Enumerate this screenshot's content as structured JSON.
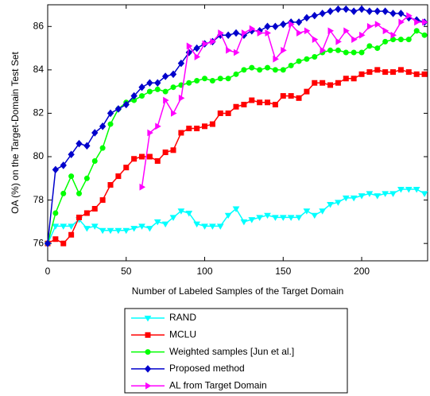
{
  "chart_data": {
    "type": "line",
    "xlabel": "Number of Labeled Samples of the Target Domain",
    "ylabel": "OA (%) on the Target-Domain Test Set",
    "x": [
      0,
      5,
      10,
      15,
      20,
      25,
      30,
      35,
      40,
      45,
      50,
      55,
      60,
      65,
      70,
      75,
      80,
      85,
      90,
      95,
      100,
      105,
      110,
      115,
      120,
      125,
      130,
      135,
      140,
      145,
      150,
      155,
      160,
      165,
      170,
      175,
      180,
      185,
      190,
      195,
      200,
      205,
      210,
      215,
      220,
      225,
      230,
      235,
      240
    ],
    "xlim": [
      0,
      242
    ],
    "xticks": [
      0,
      50,
      100,
      150,
      200
    ],
    "ylim": [
      75.2,
      87
    ],
    "yticks": [
      76,
      78,
      80,
      82,
      84,
      86
    ],
    "legend": "below",
    "series": [
      {
        "name": "RAND",
        "color": "#00ffff",
        "marker": "triangle-down",
        "values": [
          76.0,
          76.8,
          76.8,
          76.8,
          77.1,
          76.7,
          76.8,
          76.6,
          76.6,
          76.6,
          76.6,
          76.7,
          76.8,
          76.7,
          77.0,
          76.9,
          77.2,
          77.5,
          77.4,
          76.9,
          76.8,
          76.8,
          76.8,
          77.3,
          77.6,
          77.0,
          77.1,
          77.2,
          77.3,
          77.2,
          77.2,
          77.2,
          77.2,
          77.5,
          77.3,
          77.5,
          77.8,
          77.9,
          78.1,
          78.1,
          78.2,
          78.3,
          78.2,
          78.3,
          78.3,
          78.5,
          78.5,
          78.5,
          78.3
        ]
      },
      {
        "name": "MCLU",
        "color": "#ff0000",
        "marker": "square",
        "values": [
          76.0,
          76.2,
          76.0,
          76.4,
          77.2,
          77.4,
          77.6,
          78.0,
          78.7,
          79.1,
          79.5,
          79.9,
          80.0,
          80.0,
          79.8,
          80.2,
          80.3,
          81.1,
          81.3,
          81.3,
          81.4,
          81.5,
          82.0,
          82.0,
          82.3,
          82.4,
          82.6,
          82.5,
          82.5,
          82.4,
          82.8,
          82.8,
          82.7,
          83.0,
          83.4,
          83.4,
          83.3,
          83.4,
          83.6,
          83.6,
          83.8,
          83.9,
          84.0,
          83.9,
          83.9,
          84.0,
          83.9,
          83.8,
          83.8
        ]
      },
      {
        "name": "Weighted samples [Jun et al.]",
        "color": "#00ff00",
        "marker": "circle",
        "values": [
          76.0,
          77.4,
          78.3,
          79.1,
          78.3,
          79.0,
          79.8,
          80.4,
          81.5,
          82.2,
          82.5,
          82.6,
          82.8,
          83.0,
          83.1,
          83.0,
          83.2,
          83.3,
          83.4,
          83.5,
          83.6,
          83.5,
          83.6,
          83.6,
          83.8,
          84.0,
          84.1,
          84.0,
          84.1,
          84.0,
          84.0,
          84.2,
          84.4,
          84.5,
          84.6,
          84.8,
          84.9,
          84.9,
          84.8,
          84.8,
          84.8,
          85.1,
          85.0,
          85.3,
          85.4,
          85.4,
          85.4,
          85.8,
          85.6
        ]
      },
      {
        "name": "Proposed method",
        "color": "#0000cc",
        "marker": "diamond",
        "values": [
          76.0,
          79.4,
          79.6,
          80.1,
          80.6,
          80.5,
          81.1,
          81.4,
          82.0,
          82.2,
          82.4,
          82.8,
          83.2,
          83.4,
          83.4,
          83.7,
          83.8,
          84.3,
          84.8,
          85.0,
          85.2,
          85.3,
          85.6,
          85.6,
          85.7,
          85.6,
          85.8,
          85.8,
          86.0,
          86.0,
          86.1,
          86.2,
          86.2,
          86.4,
          86.5,
          86.6,
          86.7,
          86.8,
          86.8,
          86.7,
          86.8,
          86.7,
          86.7,
          86.7,
          86.6,
          86.6,
          86.4,
          86.3,
          86.2
        ]
      },
      {
        "name": "AL from Target Domain",
        "color": "#ff00ff",
        "marker": "triangle-right",
        "values": [
          null,
          null,
          null,
          null,
          null,
          null,
          null,
          null,
          null,
          null,
          null,
          null,
          78.6,
          81.1,
          81.4,
          82.6,
          82.0,
          82.7,
          85.1,
          84.6,
          85.2,
          85.3,
          85.7,
          84.9,
          84.8,
          85.7,
          85.9,
          85.7,
          85.7,
          84.5,
          84.9,
          86.1,
          85.7,
          85.8,
          85.4,
          84.9,
          85.8,
          85.3,
          85.8,
          85.4,
          85.6,
          86.0,
          86.1,
          85.8,
          85.6,
          86.2,
          86.5,
          86.2,
          86.2
        ]
      }
    ]
  }
}
